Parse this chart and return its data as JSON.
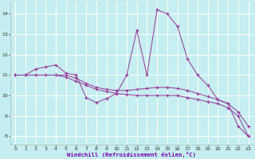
{
  "xlabel": "Windchill (Refroidissement éolien,°C)",
  "xlim": [
    -0.5,
    23.5
  ],
  "ylim": [
    7.6,
    14.6
  ],
  "yticks": [
    8,
    9,
    10,
    11,
    12,
    13,
    14
  ],
  "xticks": [
    0,
    1,
    2,
    3,
    4,
    5,
    6,
    7,
    8,
    9,
    10,
    11,
    12,
    13,
    14,
    15,
    16,
    17,
    18,
    19,
    20,
    21,
    22,
    23
  ],
  "bg_color": "#c5eef0",
  "line_color": "#993399",
  "grid_color": "#ffffff",
  "line1_x": [
    0,
    1,
    2,
    3,
    4,
    5,
    6,
    7,
    8,
    9,
    10,
    11,
    12,
    13,
    14,
    15,
    16,
    17,
    18,
    19,
    20,
    21,
    22,
    23
  ],
  "line1_y": [
    11.0,
    11.0,
    11.3,
    11.4,
    11.5,
    11.1,
    11.0,
    9.9,
    9.65,
    9.85,
    10.1,
    11.0,
    13.2,
    11.0,
    14.2,
    14.0,
    13.4,
    11.8,
    11.0,
    10.5,
    9.8,
    9.6,
    8.5,
    8.0
  ],
  "line2_x": [
    0,
    1,
    2,
    3,
    4,
    5,
    6,
    7,
    8,
    9,
    10,
    11,
    12,
    13,
    14,
    15,
    16,
    17,
    18,
    19,
    20,
    21,
    22,
    23
  ],
  "line2_y": [
    11.0,
    11.0,
    11.0,
    11.0,
    11.0,
    10.9,
    10.7,
    10.5,
    10.3,
    10.2,
    10.1,
    10.05,
    10.0,
    10.0,
    10.0,
    10.0,
    10.0,
    9.9,
    9.8,
    9.7,
    9.6,
    9.4,
    9.0,
    8.0
  ],
  "line3_x": [
    0,
    1,
    2,
    3,
    4,
    5,
    6,
    7,
    8,
    9,
    10,
    11,
    12,
    13,
    14,
    15,
    16,
    17,
    18,
    19,
    20,
    21,
    22,
    23
  ],
  "line3_y": [
    11.0,
    11.0,
    11.0,
    11.0,
    11.0,
    11.0,
    10.85,
    10.6,
    10.4,
    10.3,
    10.25,
    10.25,
    10.3,
    10.35,
    10.4,
    10.4,
    10.35,
    10.25,
    10.1,
    9.95,
    9.8,
    9.6,
    9.2,
    8.5
  ]
}
